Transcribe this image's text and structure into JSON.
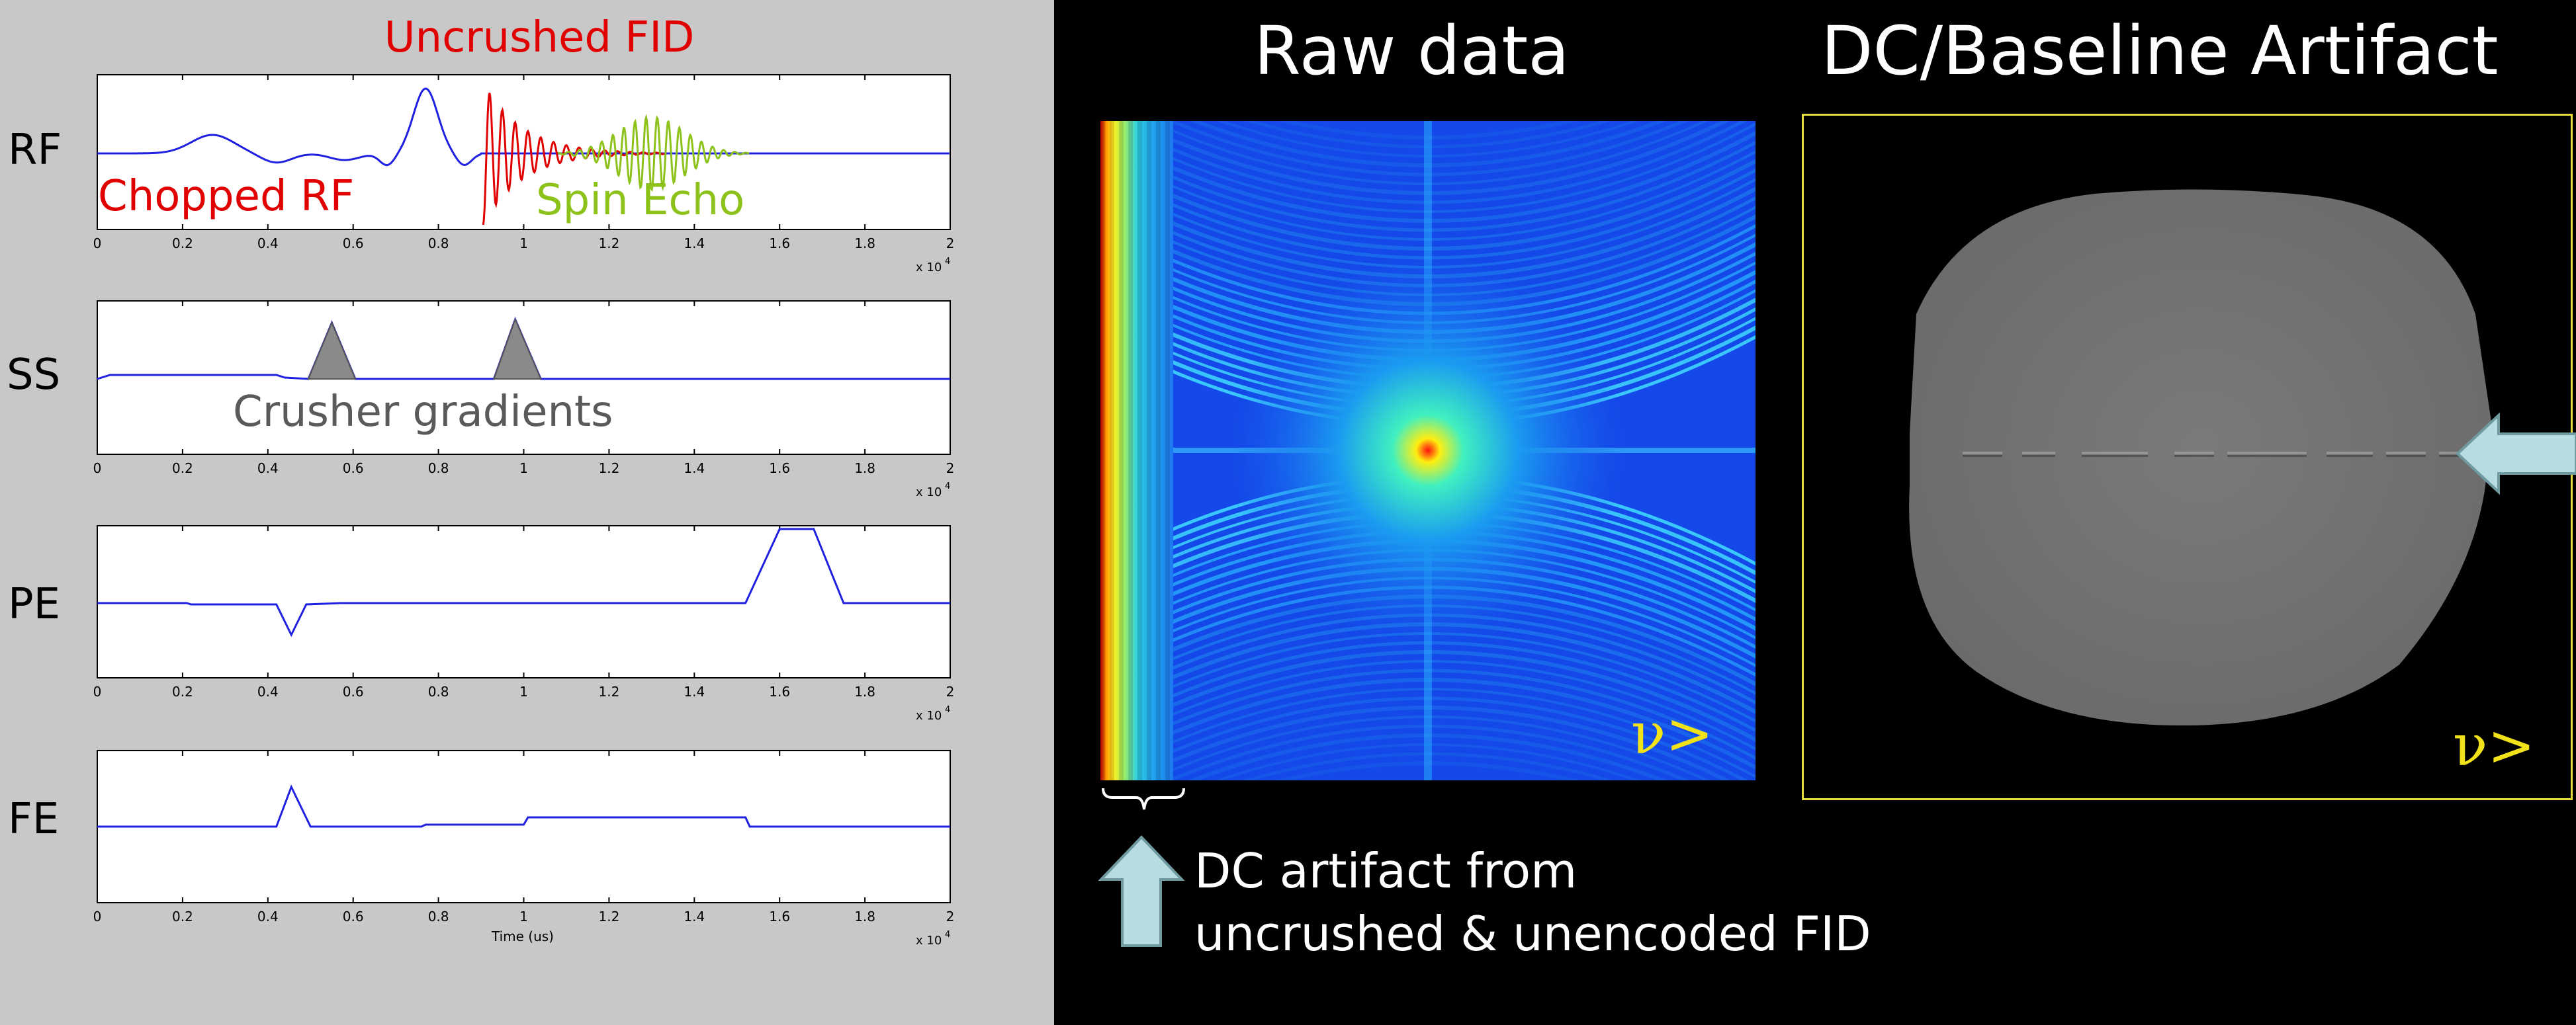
{
  "left_panel": {
    "channel_labels": [
      "RF",
      "SS",
      "PE",
      "FE"
    ],
    "x_tick_labels": [
      "0",
      "0.2",
      "0.4",
      "0.6",
      "0.8",
      "1",
      "1.2",
      "1.4",
      "1.6",
      "1.8",
      "2"
    ],
    "x_multiplier": "x 10",
    "x_exponent": "4",
    "x_axis_label": "Time (us)",
    "annotations": {
      "uncrushed_fid": "Uncrushed FID",
      "chopped_rf": "Chopped RF",
      "spin_echo": "Spin Echo",
      "crusher_gradients": "Crusher gradients"
    },
    "colors": {
      "trace": "#2020e0",
      "fid": "#e00000",
      "echo": "#8cc21a",
      "crusher_fill": "#8a8a8a"
    }
  },
  "middle": {
    "title": "Raw data",
    "symbol": "ν>",
    "dc_note_line1": "DC artifact from",
    "dc_note_line2": "uncrushed & unencoded FID"
  },
  "right": {
    "title": "DC/Baseline Artifact",
    "symbol": "ν>"
  },
  "arrow_color": "#b7dde0"
}
